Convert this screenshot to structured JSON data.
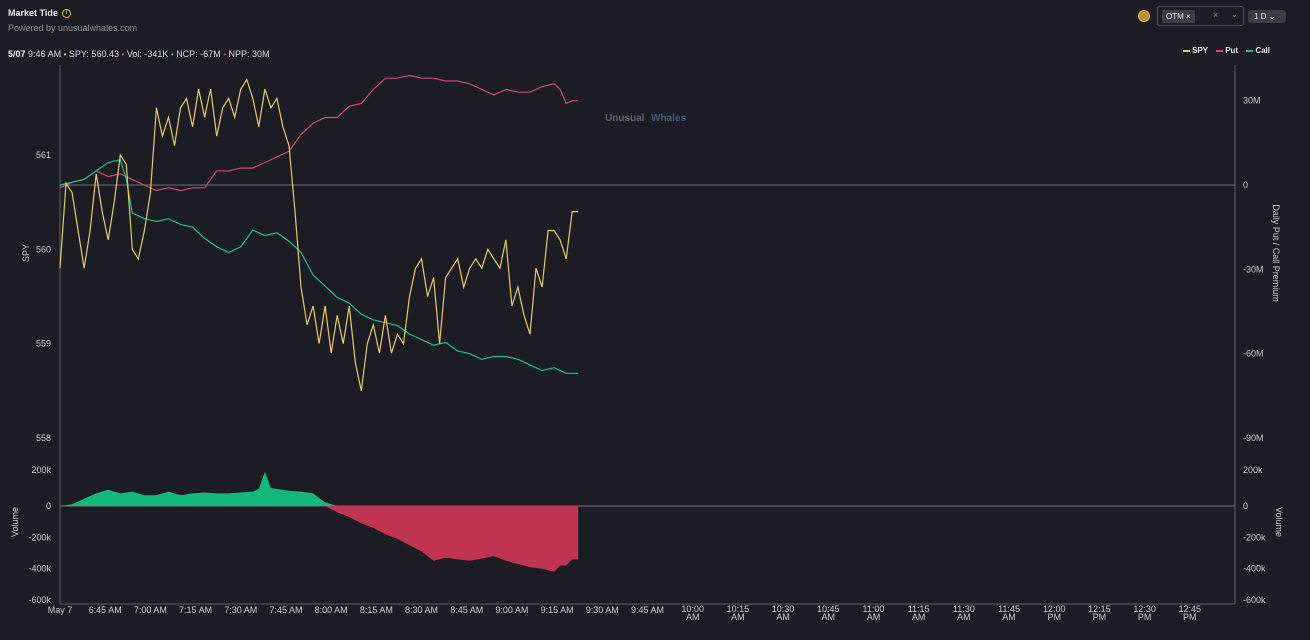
{
  "header": {
    "title": "Market Tide",
    "info_icon": "info-icon",
    "subtitle": "Powered by unusualwhales.com"
  },
  "controls": {
    "coin_icon": "coin-icon",
    "filter_tag": "OTM",
    "filter_tag_remove": "×",
    "clear_label": "×",
    "dropdown_icon": "chevron-down-icon",
    "timeframe": "1 D",
    "timeframe_chevron": "chevron-down-icon"
  },
  "status_bar": {
    "date": "5/07",
    "time": "9:46 AM",
    "spy": "SPY: 560.43",
    "vol": "Vol: -341K",
    "ncp": "NCP: -67M",
    "npp": "NPP: 30M"
  },
  "legend": {
    "spy": "SPY",
    "put": "Put",
    "call": "Call"
  },
  "watermark": {
    "part1": "Unusual",
    "part2": "Whales"
  },
  "colors": {
    "spy": "#e8c867",
    "put": "#d2436a",
    "call": "#1fbf86",
    "vol_pos": "#13b87a",
    "vol_neg": "#c0344f",
    "background": "#1c1d24"
  },
  "chart_data": {
    "type": "line",
    "x_axis": {
      "label": "",
      "range": [
        "6:30 AM",
        "1:00 PM"
      ],
      "ticks": [
        "May 7",
        "6:45 AM",
        "7:00 AM",
        "7:15 AM",
        "7:30 AM",
        "7:45 AM",
        "8:00 AM",
        "8:15 AM",
        "8:30 AM",
        "8:45 AM",
        "9:00 AM",
        "9:15 AM",
        "9:30 AM",
        "9:45 AM",
        "10:00 AM",
        "10:15 AM",
        "10:30 AM",
        "10:45 AM",
        "11:00 AM",
        "11:15 AM",
        "11:30 AM",
        "11:45 AM",
        "12:00 PM",
        "12:15 PM",
        "12:30 PM",
        "12:45 PM"
      ]
    },
    "spy_axis": {
      "label": "SPY",
      "range": [
        557.8,
        561.9
      ],
      "ticks": [
        "561",
        "560",
        "559",
        "558"
      ]
    },
    "premium_axis": {
      "label": "Daily Put / Call Premium",
      "range": [
        -93,
        44
      ],
      "ticks": [
        "30M",
        "0",
        "-30M",
        "-60M",
        "-90M"
      ]
    },
    "volume_axis": {
      "label": "Volume",
      "range": [
        -600,
        230
      ],
      "ticks": [
        "200k",
        "0",
        "-200k",
        "-400k",
        "-600k"
      ]
    },
    "grid": false,
    "legend_position": "top-right",
    "series": [
      {
        "name": "SPY",
        "values": [
          [
            0,
            559.8
          ],
          [
            2,
            560.7
          ],
          [
            4,
            560.6
          ],
          [
            6,
            560.2
          ],
          [
            8,
            559.8
          ],
          [
            10,
            560.2
          ],
          [
            12,
            560.8
          ],
          [
            14,
            560.4
          ],
          [
            16,
            560.1
          ],
          [
            18,
            560.5
          ],
          [
            20,
            561.0
          ],
          [
            22,
            560.9
          ],
          [
            24,
            560.0
          ],
          [
            26,
            559.9
          ],
          [
            28,
            560.2
          ],
          [
            30,
            560.6
          ],
          [
            32,
            561.5
          ],
          [
            34,
            561.2
          ],
          [
            36,
            561.4
          ],
          [
            38,
            561.1
          ],
          [
            40,
            561.5
          ],
          [
            42,
            561.6
          ],
          [
            44,
            561.3
          ],
          [
            46,
            561.7
          ],
          [
            48,
            561.4
          ],
          [
            50,
            561.7
          ],
          [
            52,
            561.2
          ],
          [
            54,
            561.5
          ],
          [
            56,
            561.6
          ],
          [
            58,
            561.4
          ],
          [
            60,
            561.7
          ],
          [
            62,
            561.8
          ],
          [
            64,
            561.6
          ],
          [
            66,
            561.3
          ],
          [
            68,
            561.7
          ],
          [
            70,
            561.5
          ],
          [
            72,
            561.6
          ],
          [
            74,
            561.3
          ],
          [
            76,
            561.1
          ],
          [
            78,
            560.4
          ],
          [
            80,
            559.6
          ],
          [
            82,
            559.2
          ],
          [
            84,
            559.4
          ],
          [
            86,
            559.0
          ],
          [
            88,
            559.4
          ],
          [
            90,
            558.9
          ],
          [
            92,
            559.3
          ],
          [
            94,
            559.0
          ],
          [
            96,
            559.4
          ],
          [
            98,
            558.8
          ],
          [
            100,
            558.5
          ],
          [
            102,
            559.0
          ],
          [
            104,
            559.2
          ],
          [
            106,
            558.9
          ],
          [
            108,
            559.3
          ],
          [
            110,
            558.9
          ],
          [
            112,
            559.1
          ],
          [
            114,
            559.0
          ],
          [
            116,
            559.5
          ],
          [
            118,
            559.8
          ],
          [
            120,
            559.9
          ],
          [
            122,
            559.5
          ],
          [
            124,
            559.7
          ],
          [
            126,
            559.0
          ],
          [
            128,
            559.7
          ],
          [
            130,
            559.8
          ],
          [
            132,
            559.9
          ],
          [
            134,
            559.6
          ],
          [
            136,
            559.8
          ],
          [
            138,
            559.9
          ],
          [
            140,
            559.8
          ],
          [
            142,
            560.0
          ],
          [
            144,
            559.9
          ],
          [
            146,
            559.8
          ],
          [
            148,
            560.1
          ],
          [
            150,
            559.4
          ],
          [
            152,
            559.6
          ],
          [
            154,
            559.3
          ],
          [
            156,
            559.1
          ],
          [
            158,
            559.8
          ],
          [
            160,
            559.6
          ],
          [
            162,
            560.2
          ],
          [
            164,
            560.2
          ],
          [
            166,
            560.1
          ],
          [
            168,
            559.9
          ],
          [
            170,
            560.4
          ],
          [
            172,
            560.4
          ]
        ]
      },
      {
        "name": "Put",
        "values": [
          [
            0,
            -1
          ],
          [
            4,
            1
          ],
          [
            8,
            2
          ],
          [
            12,
            5
          ],
          [
            16,
            3
          ],
          [
            20,
            4
          ],
          [
            24,
            2
          ],
          [
            28,
            0
          ],
          [
            32,
            -2
          ],
          [
            36,
            -1
          ],
          [
            40,
            -2
          ],
          [
            44,
            -1
          ],
          [
            48,
            -1
          ],
          [
            52,
            5
          ],
          [
            56,
            5
          ],
          [
            60,
            6
          ],
          [
            64,
            6
          ],
          [
            68,
            8
          ],
          [
            72,
            10
          ],
          [
            76,
            12
          ],
          [
            80,
            18
          ],
          [
            84,
            22
          ],
          [
            88,
            24
          ],
          [
            92,
            24
          ],
          [
            96,
            28
          ],
          [
            100,
            29
          ],
          [
            104,
            34
          ],
          [
            108,
            38
          ],
          [
            112,
            38
          ],
          [
            116,
            39
          ],
          [
            120,
            38
          ],
          [
            124,
            38
          ],
          [
            128,
            37
          ],
          [
            132,
            37
          ],
          [
            136,
            36
          ],
          [
            140,
            34
          ],
          [
            144,
            32
          ],
          [
            148,
            34
          ],
          [
            152,
            33
          ],
          [
            156,
            33
          ],
          [
            160,
            35
          ],
          [
            164,
            36
          ],
          [
            166,
            34
          ],
          [
            168,
            29
          ],
          [
            170,
            30
          ],
          [
            172,
            30
          ]
        ]
      },
      {
        "name": "Call",
        "values": [
          [
            0,
            0
          ],
          [
            4,
            1
          ],
          [
            8,
            2
          ],
          [
            12,
            5
          ],
          [
            16,
            8
          ],
          [
            20,
            9
          ],
          [
            22,
            2
          ],
          [
            24,
            -10
          ],
          [
            28,
            -12
          ],
          [
            32,
            -13
          ],
          [
            36,
            -12
          ],
          [
            40,
            -14
          ],
          [
            44,
            -15
          ],
          [
            48,
            -19
          ],
          [
            52,
            -22
          ],
          [
            56,
            -24
          ],
          [
            60,
            -22
          ],
          [
            64,
            -16
          ],
          [
            68,
            -18
          ],
          [
            72,
            -17
          ],
          [
            76,
            -20
          ],
          [
            80,
            -24
          ],
          [
            84,
            -32
          ],
          [
            88,
            -36
          ],
          [
            92,
            -40
          ],
          [
            96,
            -42
          ],
          [
            100,
            -46
          ],
          [
            104,
            -48
          ],
          [
            108,
            -49
          ],
          [
            112,
            -50
          ],
          [
            116,
            -53
          ],
          [
            120,
            -55
          ],
          [
            124,
            -57
          ],
          [
            128,
            -56
          ],
          [
            132,
            -59
          ],
          [
            136,
            -60
          ],
          [
            140,
            -62
          ],
          [
            144,
            -61
          ],
          [
            148,
            -61
          ],
          [
            152,
            -62
          ],
          [
            156,
            -64
          ],
          [
            160,
            -66
          ],
          [
            164,
            -65
          ],
          [
            168,
            -67
          ],
          [
            172,
            -67
          ]
        ]
      },
      {
        "name": "Volume",
        "values": [
          [
            0,
            0
          ],
          [
            4,
            10
          ],
          [
            8,
            40
          ],
          [
            12,
            70
          ],
          [
            16,
            90
          ],
          [
            20,
            70
          ],
          [
            24,
            80
          ],
          [
            28,
            60
          ],
          [
            32,
            60
          ],
          [
            36,
            80
          ],
          [
            40,
            60
          ],
          [
            44,
            70
          ],
          [
            48,
            75
          ],
          [
            52,
            70
          ],
          [
            56,
            70
          ],
          [
            60,
            75
          ],
          [
            64,
            80
          ],
          [
            66,
            95
          ],
          [
            68,
            190
          ],
          [
            70,
            100
          ],
          [
            72,
            95
          ],
          [
            76,
            85
          ],
          [
            80,
            80
          ],
          [
            84,
            70
          ],
          [
            88,
            20
          ],
          [
            92,
            -40
          ],
          [
            96,
            -70
          ],
          [
            100,
            -110
          ],
          [
            104,
            -140
          ],
          [
            108,
            -180
          ],
          [
            112,
            -210
          ],
          [
            116,
            -250
          ],
          [
            120,
            -290
          ],
          [
            124,
            -350
          ],
          [
            128,
            -330
          ],
          [
            132,
            -340
          ],
          [
            136,
            -350
          ],
          [
            140,
            -335
          ],
          [
            144,
            -320
          ],
          [
            148,
            -350
          ],
          [
            152,
            -370
          ],
          [
            156,
            -390
          ],
          [
            160,
            -400
          ],
          [
            164,
            -420
          ],
          [
            166,
            -380
          ],
          [
            168,
            -380
          ],
          [
            170,
            -341
          ],
          [
            172,
            -341
          ]
        ]
      }
    ],
    "x_domain_minutes": [
      0,
      390
    ]
  }
}
